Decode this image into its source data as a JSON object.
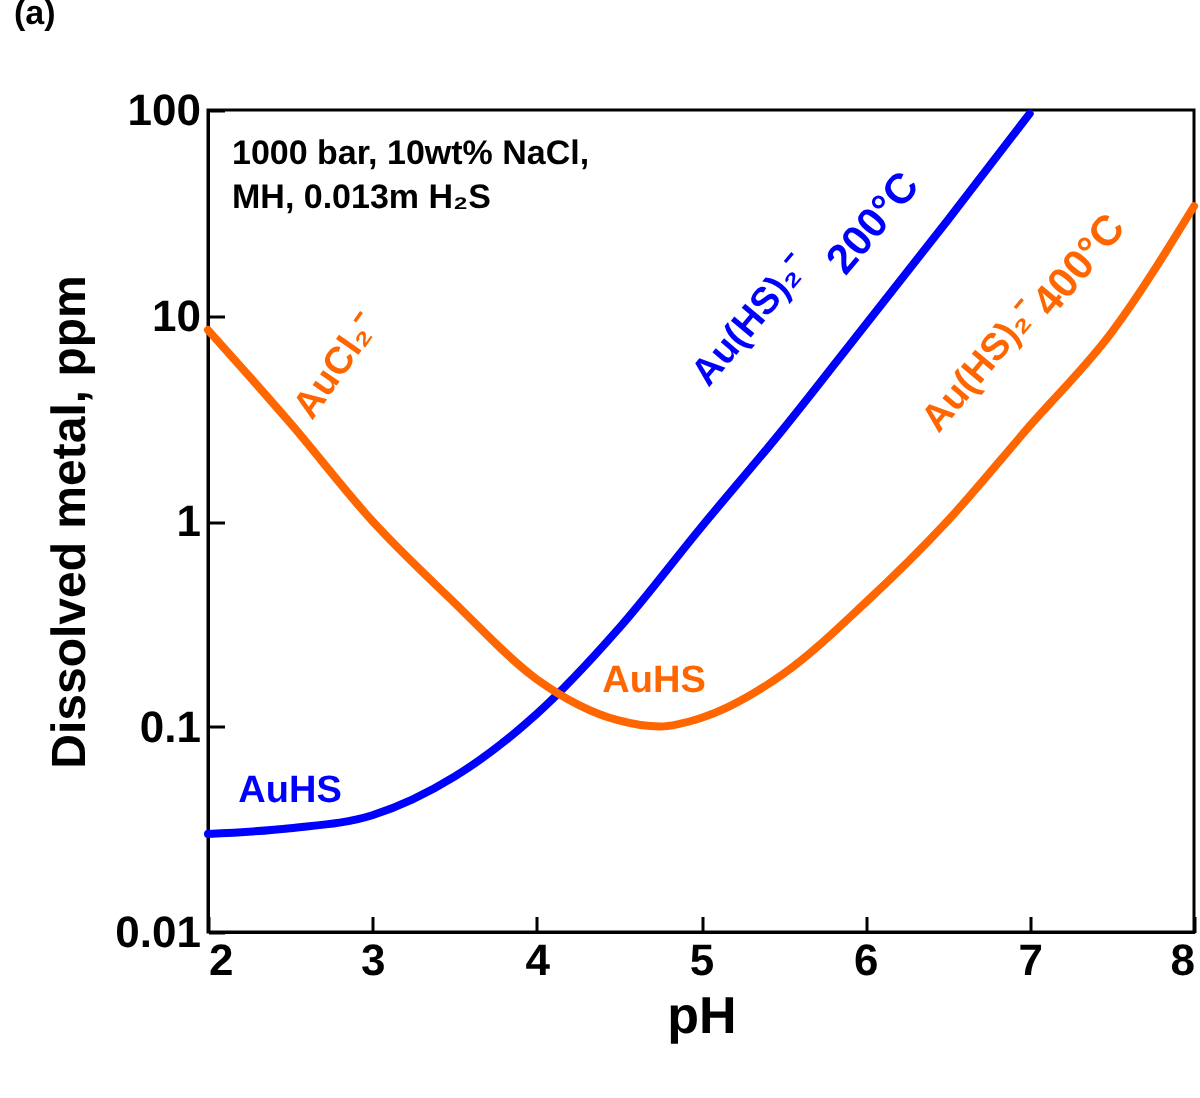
{
  "chart_data": {
    "type": "line",
    "title": "(a)",
    "xlabel": "pH",
    "ylabel": "Dissolved metal, ppm",
    "log": true,
    "grid": false,
    "xlim": [
      2,
      8
    ],
    "xticks": [
      2,
      3,
      4,
      5,
      6,
      7,
      8
    ],
    "ylim": [
      0.01,
      100
    ],
    "yticks": [
      0.01,
      0.1,
      1,
      10,
      100
    ],
    "series": [
      {
        "name": "200°C",
        "color": "#0000ff",
        "x": [
          2,
          2.5,
          3,
          3.5,
          4,
          4.5,
          5,
          5.5,
          6,
          6.5,
          7
        ],
        "values": [
          0.03,
          0.032,
          0.037,
          0.057,
          0.115,
          0.3,
          0.93,
          2.8,
          9,
          29,
          96
        ]
      },
      {
        "name": "400°C",
        "color": "#ff6600",
        "x": [
          2,
          2.5,
          3,
          3.5,
          4,
          4.5,
          4.75,
          5,
          5.5,
          6,
          6.5,
          7,
          7.5,
          8
        ],
        "values": [
          8.5,
          3,
          1,
          0.4,
          0.17,
          0.107,
          0.1,
          0.11,
          0.18,
          0.4,
          1,
          2.9,
          8.3,
          34
        ]
      }
    ],
    "annotations": [
      "1000 bar, 10wt% NaCl,\nMH, 0.013m H₂S",
      "AuCl₂⁻",
      "Au(HS)₂⁻",
      "Au(HS)₂⁻",
      "AuHS",
      "AuHS"
    ]
  }
}
